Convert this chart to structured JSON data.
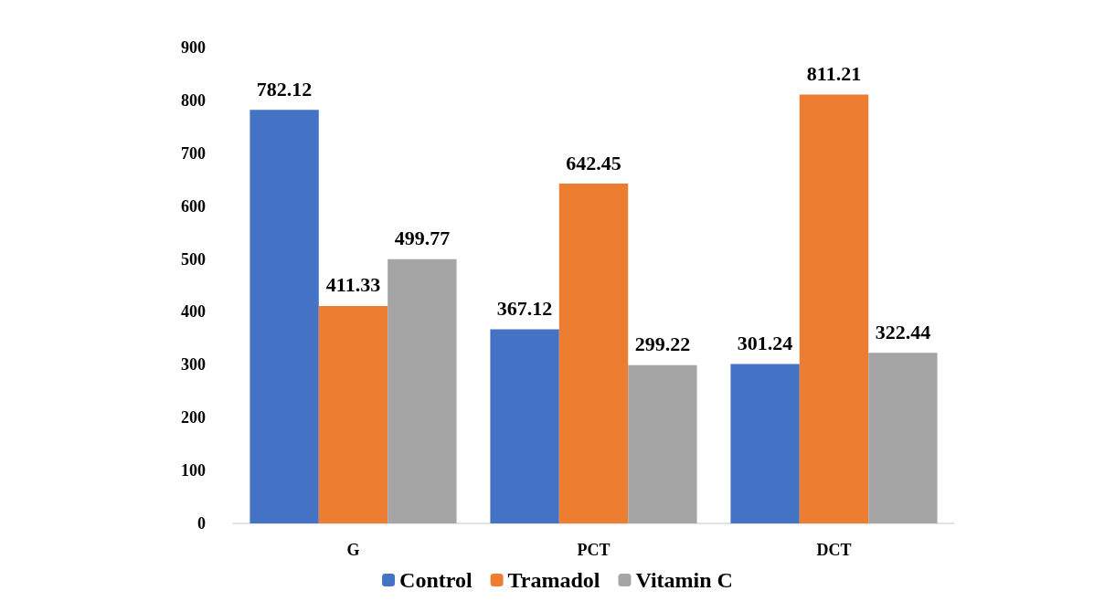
{
  "chart_data": {
    "type": "bar",
    "categories": [
      "G",
      "PCT",
      "DCT"
    ],
    "series": [
      {
        "name": "Control",
        "color": "#4472c4",
        "values": [
          782.12,
          367.12,
          301.24
        ]
      },
      {
        "name": "Tramadol",
        "color": "#ed7d31",
        "values": [
          411.33,
          642.45,
          811.21
        ]
      },
      {
        "name": "Vitamin C",
        "color": "#a5a5a5",
        "values": [
          499.77,
          299.22,
          322.44
        ]
      }
    ],
    "ylim": [
      0,
      900
    ],
    "yticks": [
      0,
      100,
      200,
      300,
      400,
      500,
      600,
      700,
      800,
      900
    ],
    "grid": false,
    "legend": "bottom",
    "data_labels": true
  }
}
